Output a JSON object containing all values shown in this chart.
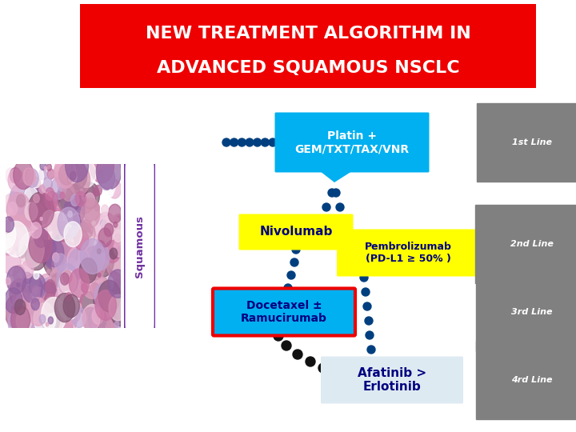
{
  "title_line1": "NEW TREATMENT ALGORITHM IN",
  "title_line2": "ADVANCED SQUAMOUS NSCLC",
  "title_bg": "#ee0000",
  "title_color": "#ffffff",
  "bg_color": "#ffffff",
  "squamous_label": "Squamous",
  "squamous_box_color": "#7030a0",
  "box1_text": "Platin +\nGEM/TXT/TAX/VNR",
  "box1_color": "#00b0f0",
  "box1_text_color": "#ffffff",
  "box2_text": "Nivolumab",
  "box2_color": "#ffff00",
  "box2_text_color": "#000080",
  "box3_text": "Docetaxel ±\nRamucirumab",
  "box3_color": "#00b0f0",
  "box3_border_color": "#ee0000",
  "box3_text_color": "#000080",
  "box4_text": "Afatinib >\nErlotinib",
  "box4_color": "#deeaf1",
  "box4_text_color": "#000080",
  "box5_text": "Pembrolizumab\n(PD-L1 ≥ 50% )",
  "box5_color": "#ffff00",
  "box5_text_color": "#000080",
  "line1_label": "1st Line",
  "line2_label": "2nd Line",
  "line3_label": "3rd Line",
  "line4_label": "4rd Line",
  "line_label_bg": "#808080",
  "line_label_color": "#ffffff",
  "dot_color_blue": "#003f7f",
  "dot_color_black": "#111111"
}
